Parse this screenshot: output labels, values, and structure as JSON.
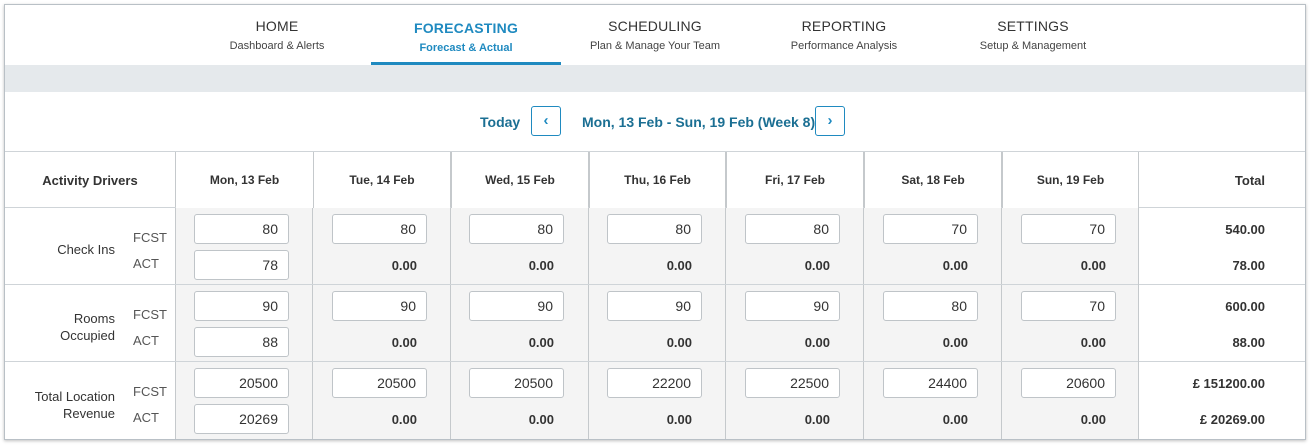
{
  "nav": [
    {
      "title": "HOME",
      "subtitle": "Dashboard & Alerts",
      "active": false
    },
    {
      "title": "FORECASTING",
      "subtitle": "Forecast & Actual",
      "active": true
    },
    {
      "title": "SCHEDULING",
      "subtitle": "Plan & Manage Your Team",
      "active": false
    },
    {
      "title": "REPORTING",
      "subtitle": "Performance Analysis",
      "active": false
    },
    {
      "title": "SETTINGS",
      "subtitle": "Setup & Management",
      "active": false
    }
  ],
  "week": {
    "today_label": "Today",
    "prev_icon": "‹",
    "next_icon": "›",
    "range_label": "Mon, 13 Feb - Sun, 19 Feb (Week 8)"
  },
  "table": {
    "driver_header": "Activity Drivers",
    "total_header": "Total",
    "days": [
      "Mon, 13 Feb",
      "Tue, 14 Feb",
      "Wed, 15 Feb",
      "Thu, 16 Feb",
      "Fri, 17 Feb",
      "Sat, 18 Feb",
      "Sun, 19 Feb"
    ],
    "fcst_label": "FCST",
    "act_label": "ACT",
    "rows": [
      {
        "name": "Check Ins",
        "fcst": [
          "80",
          "80",
          "80",
          "80",
          "80",
          "70",
          "70"
        ],
        "act_first": "78",
        "act_rest": [
          "0.00",
          "0.00",
          "0.00",
          "0.00",
          "0.00",
          "0.00"
        ],
        "fcst_total": "540.00",
        "act_total": "78.00"
      },
      {
        "name": "Rooms Occupied",
        "name_line1": "Rooms",
        "name_line2": "Occupied",
        "fcst": [
          "90",
          "90",
          "90",
          "90",
          "90",
          "80",
          "70"
        ],
        "act_first": "88",
        "act_rest": [
          "0.00",
          "0.00",
          "0.00",
          "0.00",
          "0.00",
          "0.00"
        ],
        "fcst_total": "600.00",
        "act_total": "88.00"
      },
      {
        "name": "Total Location Revenue",
        "name_line1": "Total Location",
        "name_line2": "Revenue",
        "fcst": [
          "20500",
          "20500",
          "20500",
          "22200",
          "22500",
          "24400",
          "20600"
        ],
        "act_first": "20269",
        "act_rest": [
          "0.00",
          "0.00",
          "0.00",
          "0.00",
          "0.00",
          "0.00"
        ],
        "fcst_total": "£ 151200.00",
        "act_total": "£ 20269.00"
      }
    ]
  },
  "colors": {
    "accent": "#1f8ac0",
    "week_text": "#1b6f93",
    "band": "#e5e9ec"
  }
}
